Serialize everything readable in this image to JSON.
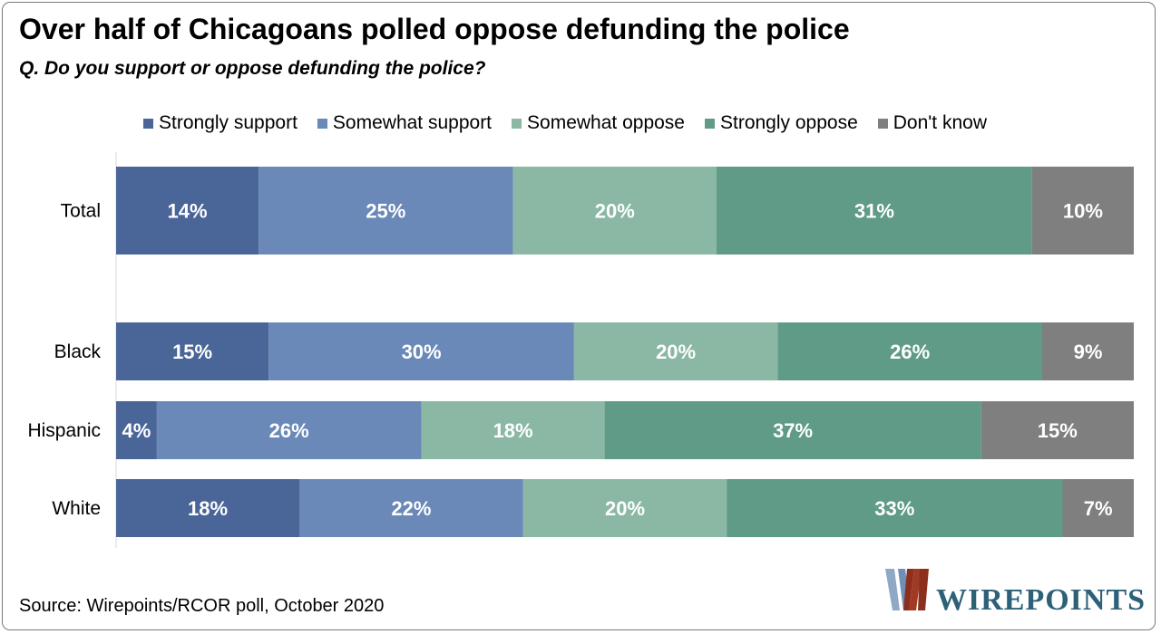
{
  "title": "Over half of Chicagoans polled oppose defunding the police",
  "subtitle": "Q. Do you support or oppose defunding the police?",
  "source": "Source: Wirepoints/RCOR poll, October 2020",
  "logo": {
    "text": "WIREPOINTS"
  },
  "colors": {
    "strongly_support": "#4a6597",
    "somewhat_support": "#6a88b8",
    "somewhat_oppose": "#8ab8a5",
    "strongly_oppose": "#5f9b86",
    "dont_know": "#7f7f7f"
  },
  "chart_data": {
    "type": "bar",
    "orientation": "horizontal",
    "stacked": "100%",
    "categories": [
      "Total",
      "Black",
      "Hispanic",
      "White"
    ],
    "series": [
      {
        "name": "Strongly support",
        "color": "#4a6597",
        "values": [
          14,
          15,
          4,
          18
        ],
        "labels": [
          "14%",
          "15%",
          "4%",
          "18%"
        ]
      },
      {
        "name": "Somewhat support",
        "color": "#6a88b8",
        "values": [
          25,
          30,
          26,
          22
        ],
        "labels": [
          "25%",
          "30%",
          "26%",
          "22%"
        ]
      },
      {
        "name": "Somewhat oppose",
        "color": "#8ab8a5",
        "values": [
          20,
          20,
          18,
          20
        ],
        "labels": [
          "20%",
          "20%",
          "18%",
          "20%"
        ]
      },
      {
        "name": "Strongly oppose",
        "color": "#5f9b86",
        "values": [
          31,
          26,
          37,
          33
        ],
        "labels": [
          "31%",
          "26%",
          "37%",
          "33%"
        ]
      },
      {
        "name": "Don't know",
        "color": "#7f7f7f",
        "values": [
          10,
          9,
          15,
          7
        ],
        "labels": [
          "10%",
          "9%",
          "15%",
          "7%"
        ]
      }
    ],
    "legend_position": "top",
    "grid": false
  }
}
